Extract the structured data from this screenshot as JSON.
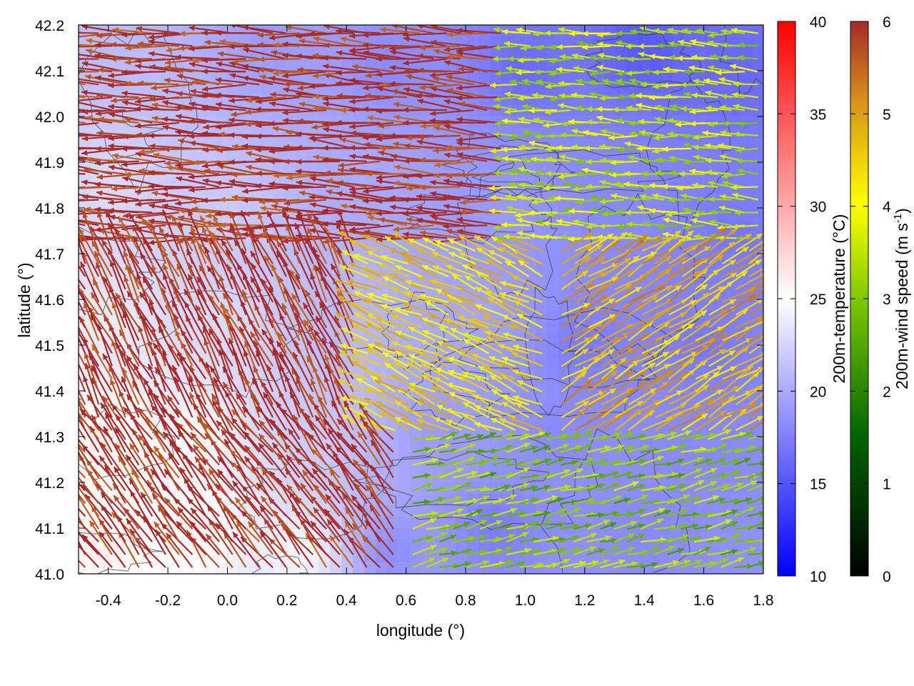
{
  "chart_data": {
    "type": "heatmap",
    "title": "",
    "xlabel": "longitude (°)",
    "ylabel": "latitude (°)",
    "xlim": [
      -0.5,
      1.8
    ],
    "ylim": [
      41.0,
      42.2
    ],
    "xticks": [
      "-0.4",
      "-0.2",
      "0.0",
      "0.2",
      "0.4",
      "0.6",
      "0.8",
      "1.0",
      "1.2",
      "1.4",
      "1.6",
      "1.8"
    ],
    "xtick_values": [
      -0.4,
      -0.2,
      0.0,
      0.2,
      0.4,
      0.6,
      0.8,
      1.0,
      1.2,
      1.4,
      1.6,
      1.8
    ],
    "yticks": [
      "41.0",
      "41.1",
      "41.2",
      "41.3",
      "41.4",
      "41.5",
      "41.6",
      "41.7",
      "41.8",
      "41.9",
      "42.0",
      "42.1",
      "42.2"
    ],
    "ytick_values": [
      41.0,
      41.1,
      41.2,
      41.3,
      41.4,
      41.5,
      41.6,
      41.7,
      41.8,
      41.9,
      42.0,
      42.1,
      42.2
    ],
    "grid": true,
    "layers": [
      {
        "name": "200m-temperature",
        "kind": "color-field"
      },
      {
        "name": "200m-wind",
        "kind": "vector-field"
      },
      {
        "name": "terrain",
        "kind": "contour"
      }
    ],
    "temperature_colorbar": {
      "label": "200m-temperature (°C)",
      "range": [
        10,
        40
      ],
      "ticks": [
        "10",
        "15",
        "20",
        "25",
        "30",
        "35",
        "40"
      ],
      "tick_values": [
        10,
        15,
        20,
        25,
        30,
        35,
        40
      ],
      "colors": [
        "#0000ff",
        "#ffffff",
        "#ff0000"
      ],
      "midpoint": 25
    },
    "wind_colorbar": {
      "label_main": "200m-wind speed (m s",
      "label_sup": "-1",
      "label_end": ")",
      "range": [
        0,
        6
      ],
      "ticks": [
        "0",
        "1",
        "2",
        "3",
        "4",
        "5",
        "6"
      ],
      "tick_values": [
        0,
        1,
        2,
        3,
        4,
        5,
        6
      ],
      "colors": [
        "#000000",
        "#006400",
        "#7fc800",
        "#ffff00",
        "#d8961a",
        "#a52a2a"
      ]
    },
    "temperature_samples": [
      {
        "lon": -0.35,
        "lat": 42.15,
        "t": 21
      },
      {
        "lon": 0.15,
        "lat": 42.15,
        "t": 19
      },
      {
        "lon": 0.55,
        "lat": 42.1,
        "t": 18
      },
      {
        "lon": 1.0,
        "lat": 42.1,
        "t": 16
      },
      {
        "lon": 1.4,
        "lat": 42.15,
        "t": 15
      },
      {
        "lon": 1.7,
        "lat": 42.1,
        "t": 16
      },
      {
        "lon": -0.4,
        "lat": 41.85,
        "t": 23
      },
      {
        "lon": 0.0,
        "lat": 41.8,
        "t": 22
      },
      {
        "lon": 0.45,
        "lat": 41.85,
        "t": 20
      },
      {
        "lon": 0.9,
        "lat": 41.8,
        "t": 19
      },
      {
        "lon": 1.3,
        "lat": 41.8,
        "t": 18
      },
      {
        "lon": 1.7,
        "lat": 41.75,
        "t": 17
      },
      {
        "lon": -0.4,
        "lat": 41.55,
        "t": 24
      },
      {
        "lon": 0.0,
        "lat": 41.55,
        "t": 23
      },
      {
        "lon": 0.4,
        "lat": 41.55,
        "t": 21
      },
      {
        "lon": 0.8,
        "lat": 41.55,
        "t": 20
      },
      {
        "lon": 1.2,
        "lat": 41.5,
        "t": 17
      },
      {
        "lon": 1.6,
        "lat": 41.5,
        "t": 17
      },
      {
        "lon": -0.4,
        "lat": 41.3,
        "t": 26
      },
      {
        "lon": -0.1,
        "lat": 41.3,
        "t": 25
      },
      {
        "lon": 0.3,
        "lat": 41.3,
        "t": 22
      },
      {
        "lon": 0.7,
        "lat": 41.3,
        "t": 19
      },
      {
        "lon": 1.1,
        "lat": 41.3,
        "t": 18
      },
      {
        "lon": 1.6,
        "lat": 41.3,
        "t": 18
      },
      {
        "lon": -0.4,
        "lat": 41.05,
        "t": 26
      },
      {
        "lon": -0.1,
        "lat": 41.1,
        "t": 26
      },
      {
        "lon": 0.25,
        "lat": 41.05,
        "t": 25
      },
      {
        "lon": 0.55,
        "lat": 41.05,
        "t": 18
      },
      {
        "lon": 0.9,
        "lat": 41.1,
        "t": 17
      },
      {
        "lon": 1.4,
        "lat": 41.1,
        "t": 18
      }
    ],
    "wind_regions": [
      {
        "lon": [
          -0.5,
          0.95
        ],
        "lat": [
          41.72,
          42.2
        ],
        "u": -1.0,
        "v": 0.06,
        "speed": 6.0
      },
      {
        "lon": [
          0.95,
          1.8
        ],
        "lat": [
          41.72,
          42.2
        ],
        "u": -1.0,
        "v": 0.05,
        "speed": 3.0
      },
      {
        "lon": [
          -0.5,
          0.45
        ],
        "lat": [
          41.3,
          41.72
        ],
        "u": -0.45,
        "v": 0.9,
        "speed": 6.0
      },
      {
        "lon": [
          0.45,
          1.1
        ],
        "lat": [
          41.3,
          41.72
        ],
        "u": -0.9,
        "v": 0.4,
        "speed": 4.0
      },
      {
        "lon": [
          1.1,
          1.8
        ],
        "lat": [
          41.3,
          41.72
        ],
        "u": 0.8,
        "v": 0.5,
        "speed": 4.5
      },
      {
        "lon": [
          -0.5,
          0.6
        ],
        "lat": [
          41.0,
          41.3
        ],
        "u": -0.6,
        "v": 0.8,
        "speed": 6.0
      },
      {
        "lon": [
          0.6,
          1.8
        ],
        "lat": [
          41.0,
          41.3
        ],
        "u": 1.0,
        "v": 0.25,
        "speed": 2.5
      }
    ]
  }
}
